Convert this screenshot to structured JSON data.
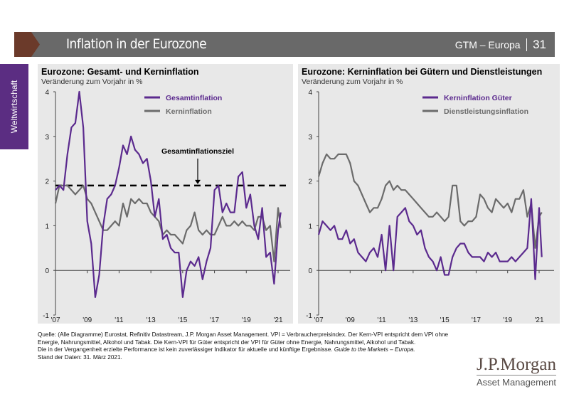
{
  "header": {
    "title": "Inflation in der Eurozone",
    "series_label": "GTM – Europa",
    "page_number": "31"
  },
  "sidebar": {
    "tab_label": "Weltwirtschaft"
  },
  "colors": {
    "purple": "#5b2a8e",
    "grey": "#6b6b6b",
    "header": "#696969",
    "brand_brown": "#6b3a2a"
  },
  "chart_data": [
    {
      "type": "line",
      "title": "Eurozone: Gesamt- und Kerninflation",
      "subtitle": "Veränderung zum Vorjahr in %",
      "ylim": [
        -1,
        4
      ],
      "yticks": [
        "4",
        "3",
        "2",
        "1",
        "0",
        "-1"
      ],
      "xticks": [
        "'07",
        "'09",
        "'11",
        "'13",
        "'15",
        "'17",
        "'19",
        "'21"
      ],
      "legend": "top-right",
      "target_line": {
        "label": "Gesamtinflationsziel",
        "value": 1.9
      },
      "x": [
        "2007-01",
        "2007-04",
        "2007-07",
        "2007-10",
        "2008-01",
        "2008-04",
        "2008-07",
        "2008-10",
        "2009-01",
        "2009-04",
        "2009-07",
        "2009-10",
        "2010-01",
        "2010-04",
        "2010-07",
        "2010-10",
        "2011-01",
        "2011-04",
        "2011-07",
        "2011-10",
        "2012-01",
        "2012-04",
        "2012-07",
        "2012-10",
        "2013-01",
        "2013-04",
        "2013-07",
        "2013-10",
        "2014-01",
        "2014-04",
        "2014-07",
        "2014-10",
        "2015-01",
        "2015-04",
        "2015-07",
        "2015-10",
        "2016-01",
        "2016-04",
        "2016-07",
        "2016-10",
        "2017-01",
        "2017-04",
        "2017-07",
        "2017-10",
        "2018-01",
        "2018-04",
        "2018-07",
        "2018-10",
        "2019-01",
        "2019-04",
        "2019-07",
        "2019-10",
        "2020-01",
        "2020-04",
        "2020-07",
        "2020-10",
        "2021-01",
        "2021-03"
      ],
      "series": [
        {
          "name": "Gesamtinflation",
          "color": "#5b2a8e",
          "values": [
            1.8,
            1.9,
            1.8,
            2.6,
            3.2,
            3.3,
            4.0,
            3.2,
            1.1,
            0.6,
            -0.6,
            -0.1,
            1.0,
            1.6,
            1.7,
            1.9,
            2.3,
            2.8,
            2.6,
            3.0,
            2.7,
            2.6,
            2.4,
            2.5,
            2.0,
            1.2,
            1.6,
            0.7,
            0.8,
            0.5,
            0.4,
            0.4,
            -0.6,
            0.0,
            0.2,
            0.1,
            0.3,
            -0.2,
            0.2,
            0.5,
            1.8,
            1.9,
            1.3,
            1.5,
            1.3,
            1.3,
            2.1,
            2.2,
            1.4,
            1.7,
            1.0,
            0.7,
            1.4,
            0.3,
            0.4,
            -0.3,
            0.9,
            1.3
          ]
        },
        {
          "name": "Kerninflation",
          "color": "#6b6b6b",
          "values": [
            1.5,
            1.9,
            1.9,
            1.9,
            1.8,
            1.7,
            1.8,
            1.9,
            1.6,
            1.5,
            1.3,
            1.1,
            0.9,
            0.9,
            1.0,
            1.1,
            1.0,
            1.5,
            1.2,
            1.6,
            1.5,
            1.6,
            1.5,
            1.5,
            1.3,
            1.2,
            1.1,
            0.8,
            0.9,
            0.8,
            0.8,
            0.7,
            0.6,
            0.9,
            1.0,
            1.3,
            0.9,
            0.8,
            0.9,
            0.8,
            0.8,
            1.0,
            1.2,
            1.0,
            1.0,
            1.1,
            1.0,
            1.1,
            1.0,
            1.0,
            0.9,
            1.2,
            1.2,
            0.9,
            1.0,
            0.2,
            1.4,
            0.95
          ]
        }
      ]
    },
    {
      "type": "line",
      "title": "Eurozone: Kerninflation bei Gütern und Dienstleistungen",
      "subtitle": "Veränderung zum Vorjahr in %",
      "ylim": [
        -1,
        4
      ],
      "yticks": [
        "4",
        "3",
        "2",
        "1",
        "0",
        "-1"
      ],
      "xticks": [
        "'07",
        "'09",
        "'11",
        "'13",
        "'15",
        "'17",
        "'19",
        "'21"
      ],
      "legend": "top-right",
      "x": [
        "2007-01",
        "2007-04",
        "2007-07",
        "2007-10",
        "2008-01",
        "2008-04",
        "2008-07",
        "2008-10",
        "2009-01",
        "2009-04",
        "2009-07",
        "2009-10",
        "2010-01",
        "2010-04",
        "2010-07",
        "2010-10",
        "2011-01",
        "2011-04",
        "2011-07",
        "2011-10",
        "2012-01",
        "2012-04",
        "2012-07",
        "2012-10",
        "2013-01",
        "2013-04",
        "2013-07",
        "2013-10",
        "2014-01",
        "2014-04",
        "2014-07",
        "2014-10",
        "2015-01",
        "2015-04",
        "2015-07",
        "2015-10",
        "2016-01",
        "2016-04",
        "2016-07",
        "2016-10",
        "2017-01",
        "2017-04",
        "2017-07",
        "2017-10",
        "2018-01",
        "2018-04",
        "2018-07",
        "2018-10",
        "2019-01",
        "2019-04",
        "2019-07",
        "2019-10",
        "2020-01",
        "2020-04",
        "2020-07",
        "2020-10",
        "2021-01",
        "2021-03"
      ],
      "series": [
        {
          "name": "Kerninflation Güter",
          "color": "#5b2a8e",
          "values": [
            0.8,
            1.1,
            1.0,
            0.9,
            1.0,
            0.7,
            0.7,
            0.9,
            0.6,
            0.7,
            0.4,
            0.3,
            0.2,
            0.4,
            0.5,
            0.3,
            0.8,
            0.0,
            1.0,
            0.0,
            1.2,
            1.3,
            1.4,
            1.1,
            1.0,
            0.8,
            0.9,
            0.5,
            0.3,
            0.2,
            0.0,
            0.3,
            -0.1,
            -0.1,
            0.3,
            0.5,
            0.6,
            0.6,
            0.4,
            0.3,
            0.3,
            0.3,
            0.2,
            0.4,
            0.3,
            0.4,
            0.2,
            0.2,
            0.2,
            0.3,
            0.2,
            0.3,
            0.4,
            0.5,
            1.6,
            -0.2,
            1.4,
            0.3
          ]
        },
        {
          "name": "Dienstleistungsinflation",
          "color": "#6b6b6b",
          "values": [
            2.1,
            2.4,
            2.6,
            2.5,
            2.5,
            2.6,
            2.6,
            2.6,
            2.4,
            2.0,
            1.9,
            1.7,
            1.5,
            1.3,
            1.4,
            1.4,
            1.6,
            1.9,
            2.0,
            1.8,
            1.9,
            1.8,
            1.8,
            1.7,
            1.6,
            1.5,
            1.4,
            1.3,
            1.2,
            1.2,
            1.3,
            1.2,
            1.1,
            1.2,
            1.9,
            1.9,
            1.1,
            1.0,
            1.1,
            1.1,
            1.2,
            1.7,
            1.6,
            1.4,
            1.3,
            1.6,
            1.5,
            1.4,
            1.5,
            1.3,
            1.6,
            1.6,
            1.8,
            1.2,
            1.5,
            0.5,
            1.2,
            1.3
          ]
        }
      ]
    }
  ],
  "footer": {
    "source": "Quelle: (Alle Diagramme) Eurostat, Refinitiv Datastream, J.P. Morgan Asset Management. VPI = Verbraucherpreisindex. Der Kern-VPI entspricht dem VPI ohne Energie, Nahrungsmittel, Alkohol und Tabak. Die Kern-VPI für Güter entspricht der VPI für Güter ohne Energie, Nahrungsmittel, Alkohol und Tabak.",
    "disclaimer": "Die in der Vergangenheit erzielte Performance ist kein zuverlässiger Indikator für aktuelle und künftige Ergebnisse.",
    "guide": "Guide to the Markets – Europa.",
    "date": "Stand der Daten: 31. März 2021."
  },
  "logo": {
    "name": "J.P.Morgan",
    "tagline": "Asset Management"
  }
}
